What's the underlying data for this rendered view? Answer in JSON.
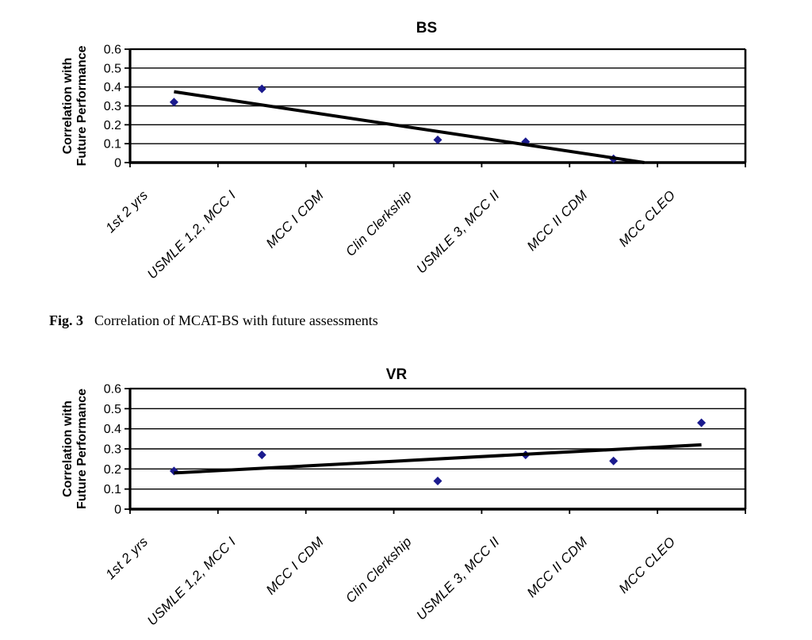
{
  "page": {
    "background": "#ffffff"
  },
  "caption": {
    "label": "Fig. 3",
    "text": "Correlation of MCAT-BS with future assessments"
  },
  "colors": {
    "marker": "#1b1b8e",
    "axis": "#000000",
    "trendline": "#000000"
  },
  "chart_data": [
    {
      "type": "scatter",
      "title": "BS",
      "xlabel": "",
      "ylabel": "Correlation with Future Performance",
      "ylabel_lines": [
        "Correlation with",
        "Future Performance"
      ],
      "categories": [
        "1st 2 yrs",
        "USMLE 1,2, MCC I",
        "MCC I CDM",
        "Clin Clerkship",
        "USMLE 3, MCC II",
        "MCC II CDM",
        "MCC CLEO"
      ],
      "values": [
        0.32,
        0.39,
        null,
        0.12,
        0.11,
        0.02,
        null
      ],
      "ylim": [
        0,
        0.6
      ],
      "ytick_step": 0.1,
      "yticks": [
        "0",
        "0.1",
        "0.2",
        "0.3",
        "0.4",
        "0.5",
        "0.6"
      ],
      "grid": true,
      "legend": false,
      "marker": "diamond",
      "marker_color": "#1b1b8e",
      "trendline": {
        "type": "linear",
        "x1": 1,
        "y1": 0.375,
        "x2": 6.35,
        "y2": 0
      }
    },
    {
      "type": "scatter",
      "title": "VR",
      "xlabel": "",
      "ylabel": "Correlation with Future Performance",
      "ylabel_lines": [
        "Correlation with",
        "Future Performance"
      ],
      "categories": [
        "1st 2 yrs",
        "USMLE 1,2, MCC I",
        "MCC I CDM",
        "Clin Clerkship",
        "USMLE 3, MCC II",
        "MCC II CDM",
        "MCC CLEO"
      ],
      "values": [
        0.19,
        0.27,
        null,
        0.14,
        0.27,
        0.24,
        0.43
      ],
      "ylim": [
        0,
        0.6
      ],
      "ytick_step": 0.1,
      "yticks": [
        "0",
        "0.1",
        "0.2",
        "0.3",
        "0.4",
        "0.5",
        "0.6"
      ],
      "grid": true,
      "legend": false,
      "marker": "diamond",
      "marker_color": "#1b1b8e",
      "trendline": {
        "type": "linear",
        "x1": 1,
        "y1": 0.18,
        "x2": 7,
        "y2": 0.32
      }
    }
  ]
}
